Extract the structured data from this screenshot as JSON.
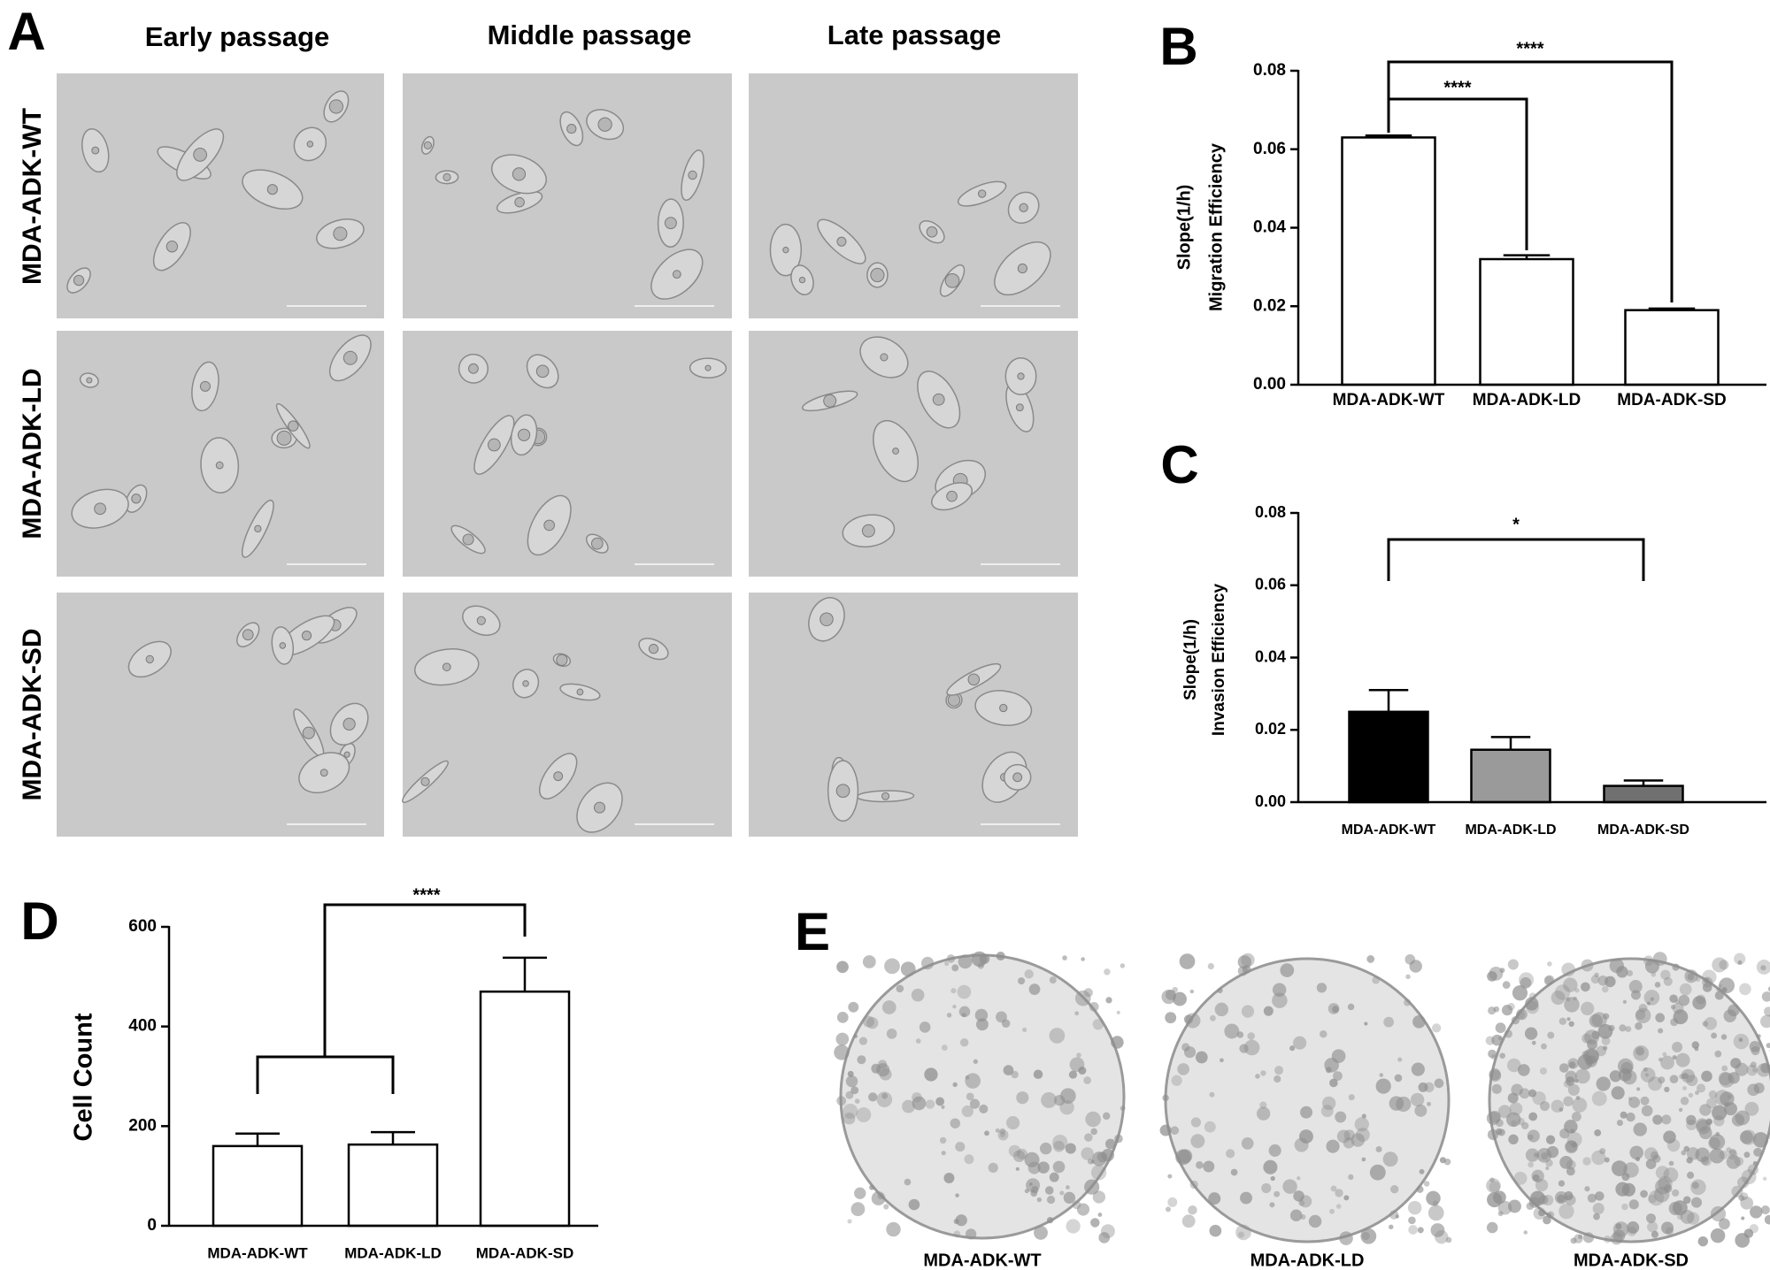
{
  "panel_a": {
    "label": "A",
    "columns": [
      "Early passage",
      "Middle passage",
      "Late passage"
    ],
    "rows": [
      "MDA-ADK-WT",
      "MDA-ADK-LD",
      "MDA-ADK-SD"
    ]
  },
  "chart_data": [
    {
      "type": "bar",
      "panel_label": "B",
      "y_label": [
        "Slope(1/h)",
        "Migration Efficiency"
      ],
      "categories": [
        "MDA-ADK-WT",
        "MDA-ADK-LD",
        "MDA-ADK-SD"
      ],
      "values": [
        0.063,
        0.032,
        0.019
      ],
      "errors": [
        0.0005,
        0.001,
        0.0004
      ],
      "colors": [
        "#ffffff",
        "#ffffff",
        "#ffffff"
      ],
      "edgecolor": "#000000",
      "ylim": [
        0,
        0.08
      ],
      "yticks": [
        {
          "value": 0,
          "label": "0.00"
        },
        {
          "value": 0.02,
          "label": "0.02"
        },
        {
          "value": 0.04,
          "label": "0.04"
        },
        {
          "value": 0.06,
          "label": "0.06"
        },
        {
          "value": 0.08,
          "label": "0.08"
        }
      ],
      "annotations": [
        "****",
        "****"
      ]
    },
    {
      "type": "bar",
      "panel_label": "C",
      "y_label": [
        "Slope(1/h)",
        "Invasion Efficiency"
      ],
      "categories": [
        "MDA-ADK-WT",
        "MDA-ADK-LD",
        "MDA-ADK-SD"
      ],
      "values": [
        0.025,
        0.0145,
        0.0045
      ],
      "errors": [
        0.006,
        0.0035,
        0.0015
      ],
      "colors": [
        "#000000",
        "#9a9a9a",
        "#707070"
      ],
      "edgecolor": "#000000",
      "ylim": [
        0,
        0.08
      ],
      "yticks": [
        {
          "value": 0,
          "label": "0.00"
        },
        {
          "value": 0.02,
          "label": "0.02"
        },
        {
          "value": 0.04,
          "label": "0.04"
        },
        {
          "value": 0.06,
          "label": "0.06"
        },
        {
          "value": 0.08,
          "label": "0.08"
        }
      ],
      "annotations": [
        "*"
      ]
    },
    {
      "type": "bar",
      "panel_label": "D",
      "y_label": [
        "Cell Count"
      ],
      "categories": [
        "MDA-ADK-WT",
        "MDA-ADK-LD",
        "MDA-ADK-SD"
      ],
      "values": [
        160,
        163,
        470
      ],
      "errors": [
        25,
        25,
        68
      ],
      "colors": [
        "#ffffff",
        "#ffffff",
        "#ffffff"
      ],
      "edgecolor": "#000000",
      "ylim": [
        0,
        600
      ],
      "yticks": [
        0,
        200,
        400,
        600
      ],
      "annotations": [
        "****"
      ]
    }
  ],
  "panel_e": {
    "label": "E",
    "dishes": [
      "MDA-ADK-WT",
      "MDA-ADK-LD",
      "MDA-ADK-SD"
    ]
  }
}
